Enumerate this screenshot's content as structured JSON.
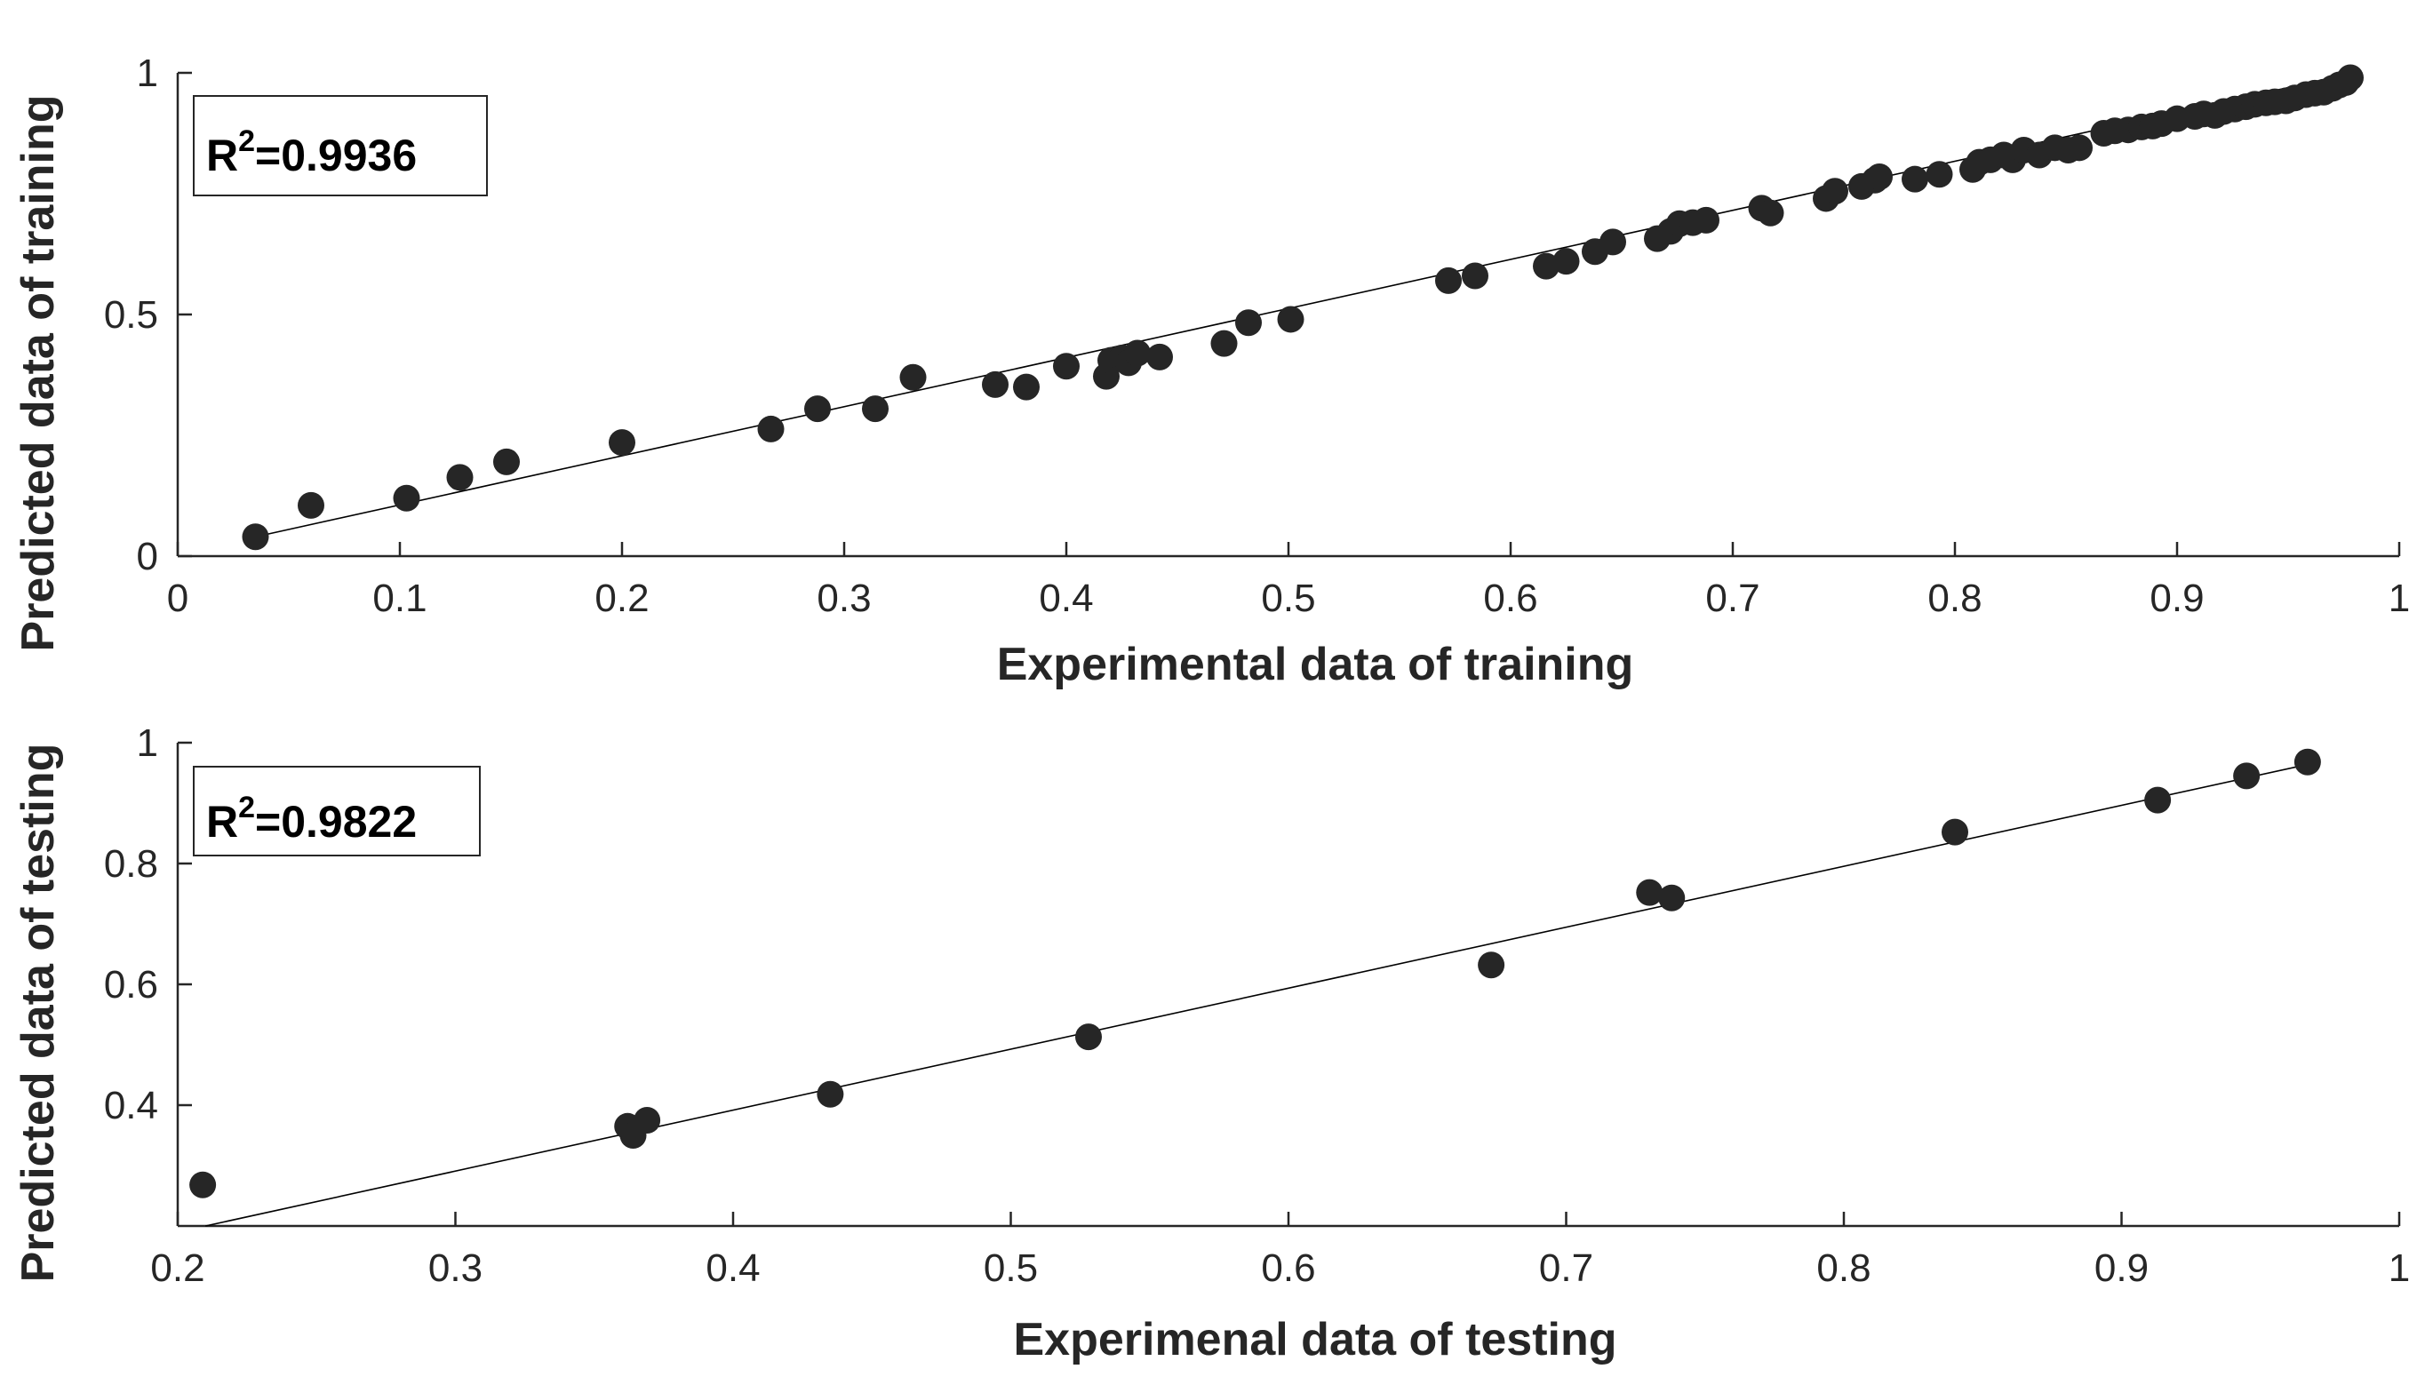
{
  "colors": {
    "marker": "#262626",
    "axis": "#262626",
    "fit_line": "#000000",
    "background": "#ffffff"
  },
  "chart_data": [
    {
      "type": "scatter",
      "xlabel": "Experimental data of training",
      "ylabel": "Predicted data of training",
      "annotation": {
        "prefix": "R",
        "sup": "2",
        "suffix": "=0.9936"
      },
      "xlim": [
        0,
        1
      ],
      "ylim": [
        0,
        1
      ],
      "xticks": [
        0,
        0.1,
        0.2,
        0.3,
        0.4,
        0.5,
        0.6,
        0.7,
        0.8,
        0.9,
        1
      ],
      "xtick_labels": [
        "0",
        "0.1",
        "0.2",
        "0.3",
        "0.4",
        "0.5",
        "0.6",
        "0.7",
        "0.8",
        "0.9",
        "1"
      ],
      "yticks": [
        0,
        0.5,
        1
      ],
      "ytick_labels": [
        "0",
        "0.5",
        "1"
      ],
      "fit_line": {
        "x": [
          0.035,
          0.978
        ],
        "y": [
          0.04,
          0.998
        ]
      },
      "x": [
        0.035,
        0.06,
        0.103,
        0.127,
        0.148,
        0.2,
        0.267,
        0.288,
        0.314,
        0.331,
        0.368,
        0.382,
        0.4,
        0.418,
        0.42,
        0.425,
        0.428,
        0.432,
        0.442,
        0.471,
        0.482,
        0.501,
        0.572,
        0.584,
        0.616,
        0.625,
        0.638,
        0.646,
        0.666,
        0.672,
        0.676,
        0.682,
        0.688,
        0.713,
        0.717,
        0.742,
        0.746,
        0.758,
        0.764,
        0.766,
        0.782,
        0.793,
        0.808,
        0.811,
        0.816,
        0.822,
        0.826,
        0.831,
        0.838,
        0.845,
        0.851,
        0.856,
        0.867,
        0.872,
        0.878,
        0.884,
        0.889,
        0.893,
        0.9,
        0.908,
        0.912,
        0.917,
        0.921,
        0.926,
        0.931,
        0.935,
        0.94,
        0.944,
        0.949,
        0.953,
        0.958,
        0.962,
        0.966,
        0.97,
        0.973,
        0.976,
        0.978
      ],
      "y": [
        0.04,
        0.105,
        0.12,
        0.163,
        0.195,
        0.235,
        0.263,
        0.305,
        0.305,
        0.37,
        0.355,
        0.35,
        0.393,
        0.372,
        0.405,
        0.41,
        0.4,
        0.42,
        0.412,
        0.44,
        0.483,
        0.49,
        0.57,
        0.58,
        0.6,
        0.61,
        0.63,
        0.65,
        0.657,
        0.672,
        0.688,
        0.69,
        0.695,
        0.72,
        0.71,
        0.74,
        0.755,
        0.765,
        0.778,
        0.785,
        0.78,
        0.79,
        0.8,
        0.815,
        0.82,
        0.83,
        0.82,
        0.84,
        0.83,
        0.845,
        0.84,
        0.845,
        0.875,
        0.88,
        0.882,
        0.888,
        0.89,
        0.895,
        0.905,
        0.91,
        0.915,
        0.912,
        0.92,
        0.925,
        0.93,
        0.935,
        0.938,
        0.94,
        0.942,
        0.948,
        0.955,
        0.958,
        0.96,
        0.968,
        0.975,
        0.98,
        0.99
      ]
    },
    {
      "type": "scatter",
      "xlabel": "Experimenal data of testing",
      "ylabel": "Predicted data of testing",
      "annotation": {
        "prefix": "R",
        "sup": "2",
        "suffix": "=0.9822"
      },
      "xlim": [
        0.2,
        1
      ],
      "ylim": [
        0.2,
        1
      ],
      "xticks": [
        0.2,
        0.3,
        0.4,
        0.5,
        0.6,
        0.7,
        0.8,
        0.9,
        1
      ],
      "xtick_labels": [
        "0.2",
        "0.3",
        "0.4",
        "0.5",
        "0.6",
        "0.7",
        "0.8",
        "0.9",
        "1"
      ],
      "yticks": [
        0.4,
        0.6,
        0.8,
        1
      ],
      "ytick_labels": [
        "0.4",
        "0.6",
        "0.8",
        "1"
      ],
      "fit_line": {
        "x": [
          0.21,
          0.968
        ],
        "y": [
          0.2,
          0.965
        ]
      },
      "x": [
        0.209,
        0.362,
        0.364,
        0.369,
        0.435,
        0.528,
        0.673,
        0.73,
        0.738,
        0.84,
        0.913,
        0.945,
        0.967
      ],
      "y": [
        0.268,
        0.365,
        0.35,
        0.375,
        0.418,
        0.513,
        0.632,
        0.752,
        0.743,
        0.852,
        0.905,
        0.945,
        0.968
      ]
    }
  ]
}
